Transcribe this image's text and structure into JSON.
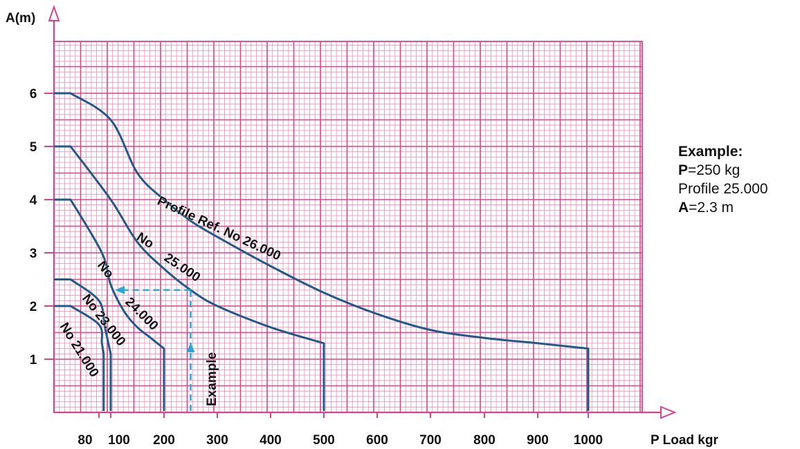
{
  "chart_data": {
    "type": "line",
    "ylabel": "A(m)",
    "xlabel": "P Load kgr",
    "x_ticks": [
      80,
      100,
      200,
      300,
      400,
      500,
      600,
      700,
      800,
      900,
      1000
    ],
    "y_ticks": [
      1,
      2,
      3,
      4,
      5,
      6
    ],
    "xlim": [
      80,
      1000
    ],
    "ylim": [
      0,
      6
    ],
    "grid": true,
    "series": [
      {
        "name": "No 21.000",
        "label": "No 21.000",
        "x": [
          80,
          75,
          80,
          85,
          88,
          88
        ],
        "y": [
          0,
          2.0,
          1.65,
          1.3,
          1.1,
          0
        ],
        "color": "#1f5a8a"
      },
      {
        "name": "No 23.000",
        "label": "No 23.000",
        "x": [
          80,
          75,
          80,
          90,
          100,
          100
        ],
        "y": [
          0,
          2.5,
          2.1,
          1.6,
          1.1,
          0
        ],
        "color": "#1f5a8a"
      },
      {
        "name": "No 24.000",
        "label": "No 24.000",
        "x": [
          80,
          75,
          85,
          100,
          125,
          150,
          175,
          200,
          200
        ],
        "y": [
          0,
          4.0,
          3.0,
          2.4,
          1.9,
          1.6,
          1.4,
          1.2,
          0
        ],
        "color": "#1f5a8a"
      },
      {
        "name": "No 25.000",
        "label": "No 25.000",
        "x": [
          80,
          75,
          100,
          150,
          200,
          250,
          300,
          400,
          500,
          500
        ],
        "y": [
          0,
          5.0,
          4.0,
          3.2,
          2.7,
          2.3,
          2.0,
          1.6,
          1.3,
          0
        ],
        "color": "#1f5a8a"
      },
      {
        "name": "Profile Ref. No 26.000",
        "label": "Profile Ref. No 26.000",
        "x": [
          80,
          75,
          100,
          150,
          200,
          250,
          300,
          400,
          500,
          600,
          700,
          800,
          900,
          1000,
          1000
        ],
        "y": [
          0,
          6.0,
          5.5,
          4.5,
          4.0,
          3.6,
          3.3,
          2.75,
          2.25,
          1.85,
          1.55,
          1.4,
          1.3,
          1.2,
          0
        ],
        "color": "#1f5a8a"
      }
    ],
    "example": {
      "label": "Example",
      "x": 250,
      "y": 2.3,
      "color": "#2aa6d8"
    }
  },
  "example_box": {
    "heading": "Example:",
    "p_label": "P",
    "p_value": "=250 kg",
    "profile": "Profile 25.000",
    "a_label": "A",
    "a_value": "=2.3 m"
  },
  "colors": {
    "grid": "#e0408a",
    "grid_minor": "#ee8ab8",
    "curve": "#1f5a8a",
    "example": "#2aa6d8"
  }
}
